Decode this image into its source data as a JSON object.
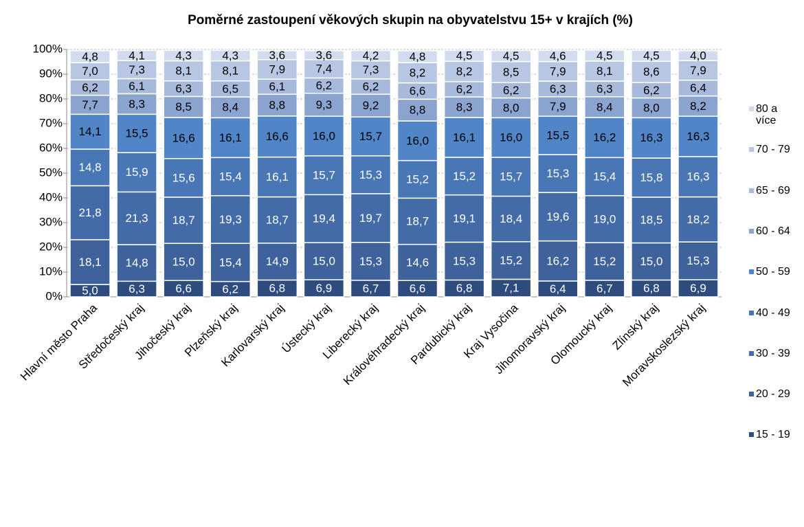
{
  "chart_data": {
    "type": "stacked_bar",
    "title": "Poměrné zastoupení věkových  skupin na obyvatelstvu  15+ v krajích (%)",
    "categories": [
      "Hlavní město Praha",
      "Středočeský kraj",
      "Jihočeský kraj",
      "Plzeňský kraj",
      "Karlovarský kraj",
      "Ústecký kraj",
      "Liberecký kraj",
      "Královéhradecký kraj",
      "Pardubický kraj",
      "Kraj Vysočina",
      "Jihomoravský kraj",
      "Olomoucký kraj",
      "Zlínský kraj",
      "Moravskoslezský kraj"
    ],
    "series": [
      {
        "name": "15 - 19",
        "color": "#2f4c7e",
        "values": [
          5.0,
          6.3,
          6.6,
          6.2,
          6.8,
          6.9,
          6.7,
          6.6,
          6.8,
          7.1,
          6.4,
          6.7,
          6.8,
          6.9
        ],
        "value_labels": [
          "5,0",
          "6,3",
          "6,6",
          "6,2",
          "6,8",
          "6,9",
          "6,7",
          "6,6",
          "6,8",
          "7,1",
          "6,4",
          "6,7",
          "6,8",
          "6,9"
        ]
      },
      {
        "name": "20 - 29",
        "color": "#3d629c",
        "values": [
          18.1,
          14.8,
          15.0,
          15.4,
          14.9,
          15.0,
          15.3,
          14.6,
          15.3,
          15.2,
          16.2,
          15.2,
          15.0,
          15.3
        ],
        "value_labels": [
          "18,1",
          "14,8",
          "15,0",
          "15,4",
          "14,9",
          "15,0",
          "15,3",
          "14,6",
          "15,3",
          "15,2",
          "16,2",
          "15,2",
          "15,0",
          "15,3"
        ]
      },
      {
        "name": "30 - 39",
        "color": "#426ba8",
        "values": [
          21.8,
          21.3,
          18.7,
          19.3,
          18.7,
          19.4,
          19.7,
          18.7,
          19.1,
          18.4,
          19.6,
          19.0,
          18.5,
          18.2
        ],
        "value_labels": [
          "21,8",
          "21,3",
          "18,7",
          "19,3",
          "18,7",
          "19,4",
          "19,7",
          "18,7",
          "19,1",
          "18,4",
          "19,6",
          "19,0",
          "18,5",
          "18,2"
        ]
      },
      {
        "name": "40 - 49",
        "color": "#4977b6",
        "values": [
          14.8,
          15.9,
          15.6,
          15.4,
          16.1,
          15.7,
          15.3,
          15.2,
          15.2,
          15.7,
          15.3,
          15.4,
          15.8,
          16.3
        ],
        "value_labels": [
          "14,8",
          "15,9",
          "15,6",
          "15,4",
          "16,1",
          "15,7",
          "15,3",
          "15,2",
          "15,2",
          "15,7",
          "15,3",
          "15,4",
          "15,8",
          "16,3"
        ]
      },
      {
        "name": "50 - 59",
        "color": "#5085c8",
        "values": [
          14.1,
          15.5,
          16.6,
          16.1,
          16.6,
          16.0,
          15.7,
          16.0,
          16.1,
          16.0,
          15.5,
          16.2,
          16.3,
          16.3
        ],
        "value_labels": [
          "14,1",
          "15,5",
          "16,6",
          "16,1",
          "16,6",
          "16,0",
          "15,7",
          "16,0",
          "16,1",
          "16,0",
          "15,5",
          "16,2",
          "16,3",
          "16,3"
        ]
      },
      {
        "name": "60 - 64",
        "color": "#8aa3cf",
        "values": [
          7.7,
          8.3,
          8.5,
          8.4,
          8.8,
          9.3,
          9.2,
          8.8,
          8.3,
          8.0,
          7.9,
          8.4,
          8.0,
          8.2
        ],
        "value_labels": [
          "7,7",
          "8,3",
          "8,5",
          "8,4",
          "8,8",
          "9,3",
          "9,2",
          "8,8",
          "8,3",
          "8,0",
          "7,9",
          "8,4",
          "8,0",
          "8,2"
        ]
      },
      {
        "name": "65 - 69",
        "color": "#a7badc",
        "values": [
          6.2,
          6.1,
          6.3,
          6.5,
          6.1,
          6.2,
          6.2,
          6.6,
          6.2,
          6.2,
          6.3,
          6.3,
          6.2,
          6.4
        ],
        "value_labels": [
          "6,2",
          "6,1",
          "6,3",
          "6,5",
          "6,1",
          "6,2",
          "6,2",
          "6,6",
          "6,2",
          "6,2",
          "6,3",
          "6,3",
          "6,2",
          "6,4"
        ]
      },
      {
        "name": "70 - 79",
        "color": "#b7c7e3",
        "values": [
          7.0,
          7.3,
          8.1,
          8.1,
          7.9,
          7.4,
          7.3,
          8.2,
          8.2,
          8.5,
          7.9,
          8.1,
          8.6,
          7.9
        ],
        "value_labels": [
          "7,0",
          "7,3",
          "8,1",
          "8,1",
          "7,9",
          "7,4",
          "7,3",
          "8,2",
          "8,2",
          "8,5",
          "7,9",
          "8,1",
          "8,6",
          "7,9"
        ]
      },
      {
        "name": "80 a více",
        "color": "#d2dcee",
        "values": [
          4.8,
          4.1,
          4.3,
          4.3,
          3.6,
          3.6,
          4.2,
          4.8,
          4.5,
          4.5,
          4.6,
          4.5,
          4.5,
          4.0
        ],
        "value_labels": [
          "4,8",
          "4,1",
          "4,3",
          "4,3",
          "3,6",
          "3,6",
          "4,2",
          "4,8",
          "4,5",
          "4,5",
          "4,6",
          "4,5",
          "4,5",
          "4,0"
        ]
      }
    ],
    "ylim": [
      0,
      100
    ],
    "yticks": [
      {
        "value": 0,
        "label": "0%"
      },
      {
        "value": 10,
        "label": "10%"
      },
      {
        "value": 20,
        "label": "20%"
      },
      {
        "value": 30,
        "label": "30%"
      },
      {
        "value": 40,
        "label": "40%"
      },
      {
        "value": 50,
        "label": "50%"
      },
      {
        "value": 60,
        "label": "60%"
      },
      {
        "value": 70,
        "label": "70%"
      },
      {
        "value": 80,
        "label": "80%"
      },
      {
        "value": 90,
        "label": "90%"
      },
      {
        "value": 100,
        "label": "100%"
      }
    ],
    "grid": true,
    "legend": "right"
  }
}
